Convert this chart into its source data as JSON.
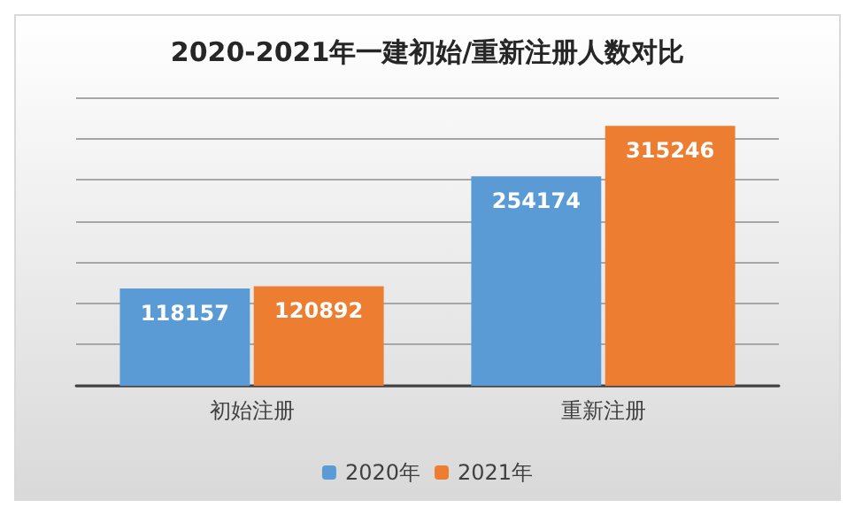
{
  "chart_data": {
    "type": "bar",
    "title": "2020-2021年一建初始/重新注册人数对比",
    "categories": [
      "初始注册",
      "重新注册"
    ],
    "series": [
      {
        "name": "2020年",
        "color": "#5b9bd5",
        "values": [
          118157,
          254174
        ]
      },
      {
        "name": "2021年",
        "color": "#ed7d31",
        "values": [
          120892,
          315246
        ]
      }
    ],
    "tick_labels": "x",
    "grid": "y",
    "data_labels": true,
    "legend": "bottom"
  }
}
